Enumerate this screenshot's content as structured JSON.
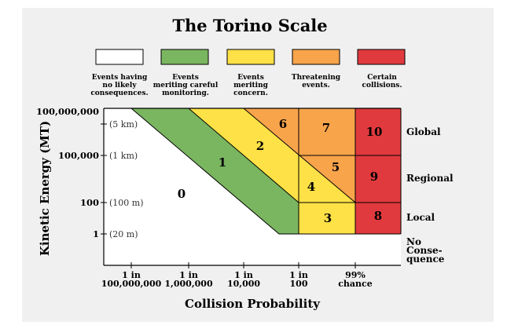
{
  "title": "The Torino Scale",
  "colors": {
    "background": "#f0f0f0",
    "white": "#ffffff",
    "green": "#7ab560",
    "yellow": "#fde146",
    "orange": "#f8a44b",
    "red": "#e03a3e",
    "stroke": "#000000"
  },
  "legend": [
    {
      "color": "#ffffff",
      "lines": [
        "Events having",
        "no likely",
        "consequences."
      ]
    },
    {
      "color": "#7ab560",
      "lines": [
        "Events",
        "meriting careful",
        "monitoring."
      ]
    },
    {
      "color": "#fde146",
      "lines": [
        "Events",
        "meriting",
        "concern."
      ]
    },
    {
      "color": "#f8a44b",
      "lines": [
        "Threatening",
        "events."
      ]
    },
    {
      "color": "#e03a3e",
      "lines": [
        "Certain",
        "collisions."
      ]
    }
  ],
  "y_axis": {
    "title": "Kinetic Energy (MT)",
    "ticks": [
      {
        "value": "100,000,000",
        "size": "(5 km)"
      },
      {
        "value": "100,000",
        "size": "(1 km)"
      },
      {
        "value": "100",
        "size": "(100 m)"
      },
      {
        "value": "1",
        "size": "(20 m)"
      }
    ]
  },
  "x_axis": {
    "title": "Collision Probability",
    "ticks": [
      [
        "1 in",
        "100,000,000"
      ],
      [
        "1 in",
        "1,000,000"
      ],
      [
        "1 in",
        "10,000"
      ],
      [
        "1 in",
        "100"
      ],
      [
        "99%",
        "chance"
      ]
    ]
  },
  "levels": [
    "0",
    "1",
    "2",
    "3",
    "4",
    "5",
    "6",
    "7",
    "8",
    "9",
    "10"
  ],
  "regions": [
    [
      "Global"
    ],
    [
      "Regional"
    ],
    [
      "Local"
    ],
    [
      "No",
      "Conse-",
      "quence"
    ]
  ]
}
